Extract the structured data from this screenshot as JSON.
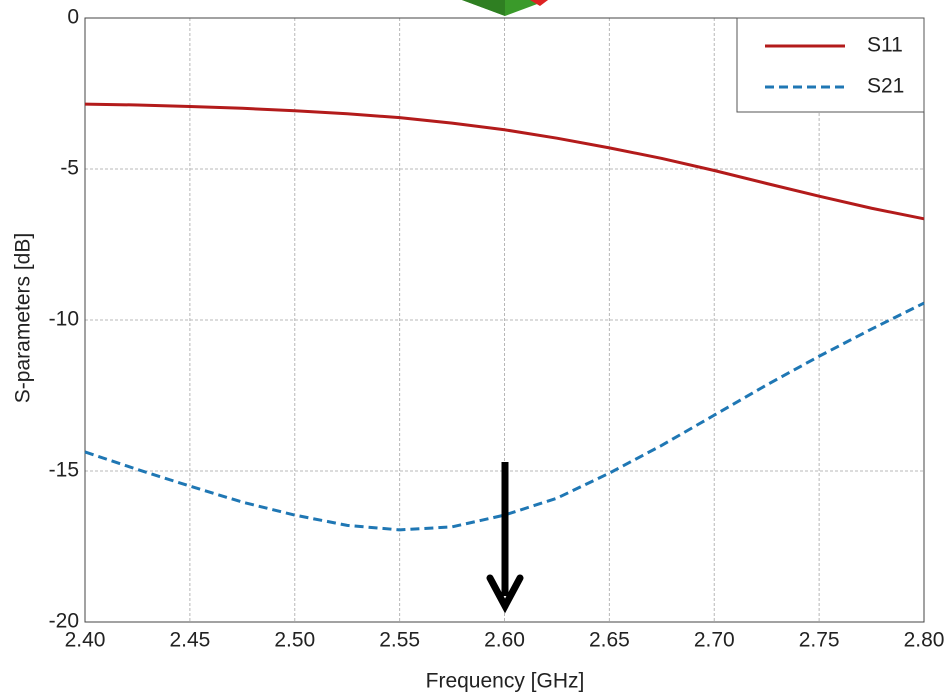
{
  "chart_data": {
    "type": "line",
    "xlabel": "Frequency [GHz]",
    "ylabel": "S-parameters [dB]",
    "x": [
      2.4,
      2.425,
      2.45,
      2.475,
      2.5,
      2.525,
      2.55,
      2.575,
      2.6,
      2.625,
      2.65,
      2.675,
      2.7,
      2.725,
      2.75,
      2.775,
      2.8
    ],
    "series": [
      {
        "name": "S11",
        "color": "#b31b1b",
        "linestyle": "solid",
        "values": [
          -2.85,
          -2.88,
          -2.93,
          -2.99,
          -3.07,
          -3.17,
          -3.3,
          -3.48,
          -3.7,
          -3.98,
          -4.3,
          -4.65,
          -5.05,
          -5.48,
          -5.9,
          -6.3,
          -6.65
        ]
      },
      {
        "name": "S21",
        "color": "#1f77b4",
        "linestyle": "dashed",
        "values": [
          -14.37,
          -14.95,
          -15.5,
          -16.03,
          -16.46,
          -16.8,
          -16.95,
          -16.85,
          -16.46,
          -15.9,
          -15.07,
          -14.15,
          -13.15,
          -12.15,
          -11.2,
          -10.3,
          -9.44
        ]
      }
    ],
    "xlim": [
      2.4,
      2.8
    ],
    "xticks": [
      {
        "value": 2.4,
        "label": "2.40"
      },
      2.45,
      {
        "value": 2.5,
        "label": "2.50"
      },
      2.55,
      {
        "value": 2.6,
        "label": "2.60"
      },
      2.65,
      {
        "value": 2.7,
        "label": "2.70"
      },
      2.75,
      {
        "value": 2.8,
        "label": "2.80"
      }
    ],
    "ylim": [
      -20,
      0
    ],
    "yticks": [
      0,
      -5,
      -10,
      -15,
      -20
    ],
    "grid": true,
    "legend": "upper right"
  }
}
